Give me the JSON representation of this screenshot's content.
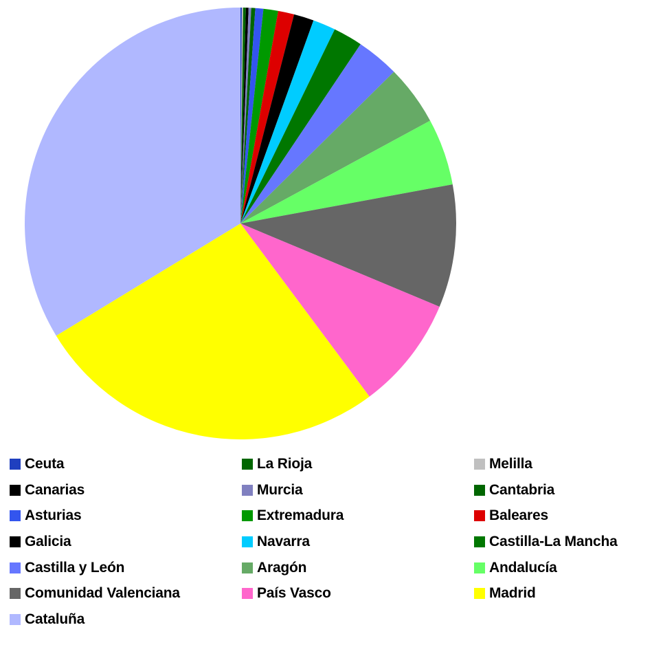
{
  "chart_data": {
    "type": "pie",
    "title": "",
    "legend_position": "bottom",
    "start_angle_deg": 0,
    "direction": "clockwise",
    "slices": [
      {
        "name": "Ceuta",
        "value": 0.1,
        "color": "#1f3fbf"
      },
      {
        "name": "Melilla",
        "value": 0.1,
        "color": "#c0c0c0"
      },
      {
        "name": "La Rioja",
        "value": 0.2,
        "color": "#006600"
      },
      {
        "name": "Canarias",
        "value": 0.2,
        "color": "#000000"
      },
      {
        "name": "Murcia",
        "value": 0.2,
        "color": "#8080c0"
      },
      {
        "name": "Cantabria",
        "value": 0.3,
        "color": "#006600"
      },
      {
        "name": "Asturias",
        "value": 0.6,
        "color": "#3355ee"
      },
      {
        "name": "Extremadura",
        "value": 1.1,
        "color": "#009900"
      },
      {
        "name": "Baleares",
        "value": 1.2,
        "color": "#dd0000"
      },
      {
        "name": "Galicia",
        "value": 1.5,
        "color": "#000000"
      },
      {
        "name": "Navarra",
        "value": 1.7,
        "color": "#00ccff"
      },
      {
        "name": "Castilla-La Mancha",
        "value": 2.2,
        "color": "#007700"
      },
      {
        "name": "Castilla y León",
        "value": 3.2,
        "color": "#6677ff"
      },
      {
        "name": "Aragón",
        "value": 4.5,
        "color": "#66aa66"
      },
      {
        "name": "Andalucía",
        "value": 5.0,
        "color": "#66ff66"
      },
      {
        "name": "Comunidad Valenciana",
        "value": 9.2,
        "color": "#666666"
      },
      {
        "name": "País Vasco",
        "value": 8.5,
        "color": "#ff66cc"
      },
      {
        "name": "Madrid",
        "value": 26.5,
        "color": "#ffff00"
      },
      {
        "name": "Cataluña",
        "value": 33.7,
        "color": "#b0b8ff"
      }
    ]
  },
  "legend": {
    "items": [
      {
        "label": "Ceuta",
        "color": "#1f3fbf"
      },
      {
        "label": "La Rioja",
        "color": "#006600"
      },
      {
        "label": "Melilla",
        "color": "#c0c0c0"
      },
      {
        "label": "Canarias",
        "color": "#000000"
      },
      {
        "label": "Murcia",
        "color": "#8080c0"
      },
      {
        "label": "Cantabria",
        "color": "#006600"
      },
      {
        "label": "Asturias",
        "color": "#3355ee"
      },
      {
        "label": "Extremadura",
        "color": "#009900"
      },
      {
        "label": "Baleares",
        "color": "#dd0000"
      },
      {
        "label": "Galicia",
        "color": "#000000"
      },
      {
        "label": "Navarra",
        "color": "#00ccff"
      },
      {
        "label": "Castilla-La Mancha",
        "color": "#007700"
      },
      {
        "label": "Castilla y León",
        "color": "#6677ff"
      },
      {
        "label": "Aragón",
        "color": "#66aa66"
      },
      {
        "label": "Andalucía",
        "color": "#66ff66"
      },
      {
        "label": "Comunidad Valenciana",
        "color": "#666666"
      },
      {
        "label": "País Vasco",
        "color": "#ff66cc"
      },
      {
        "label": "Madrid",
        "color": "#ffff00"
      },
      {
        "label": "Cataluña",
        "color": "#b0b8ff"
      }
    ]
  }
}
